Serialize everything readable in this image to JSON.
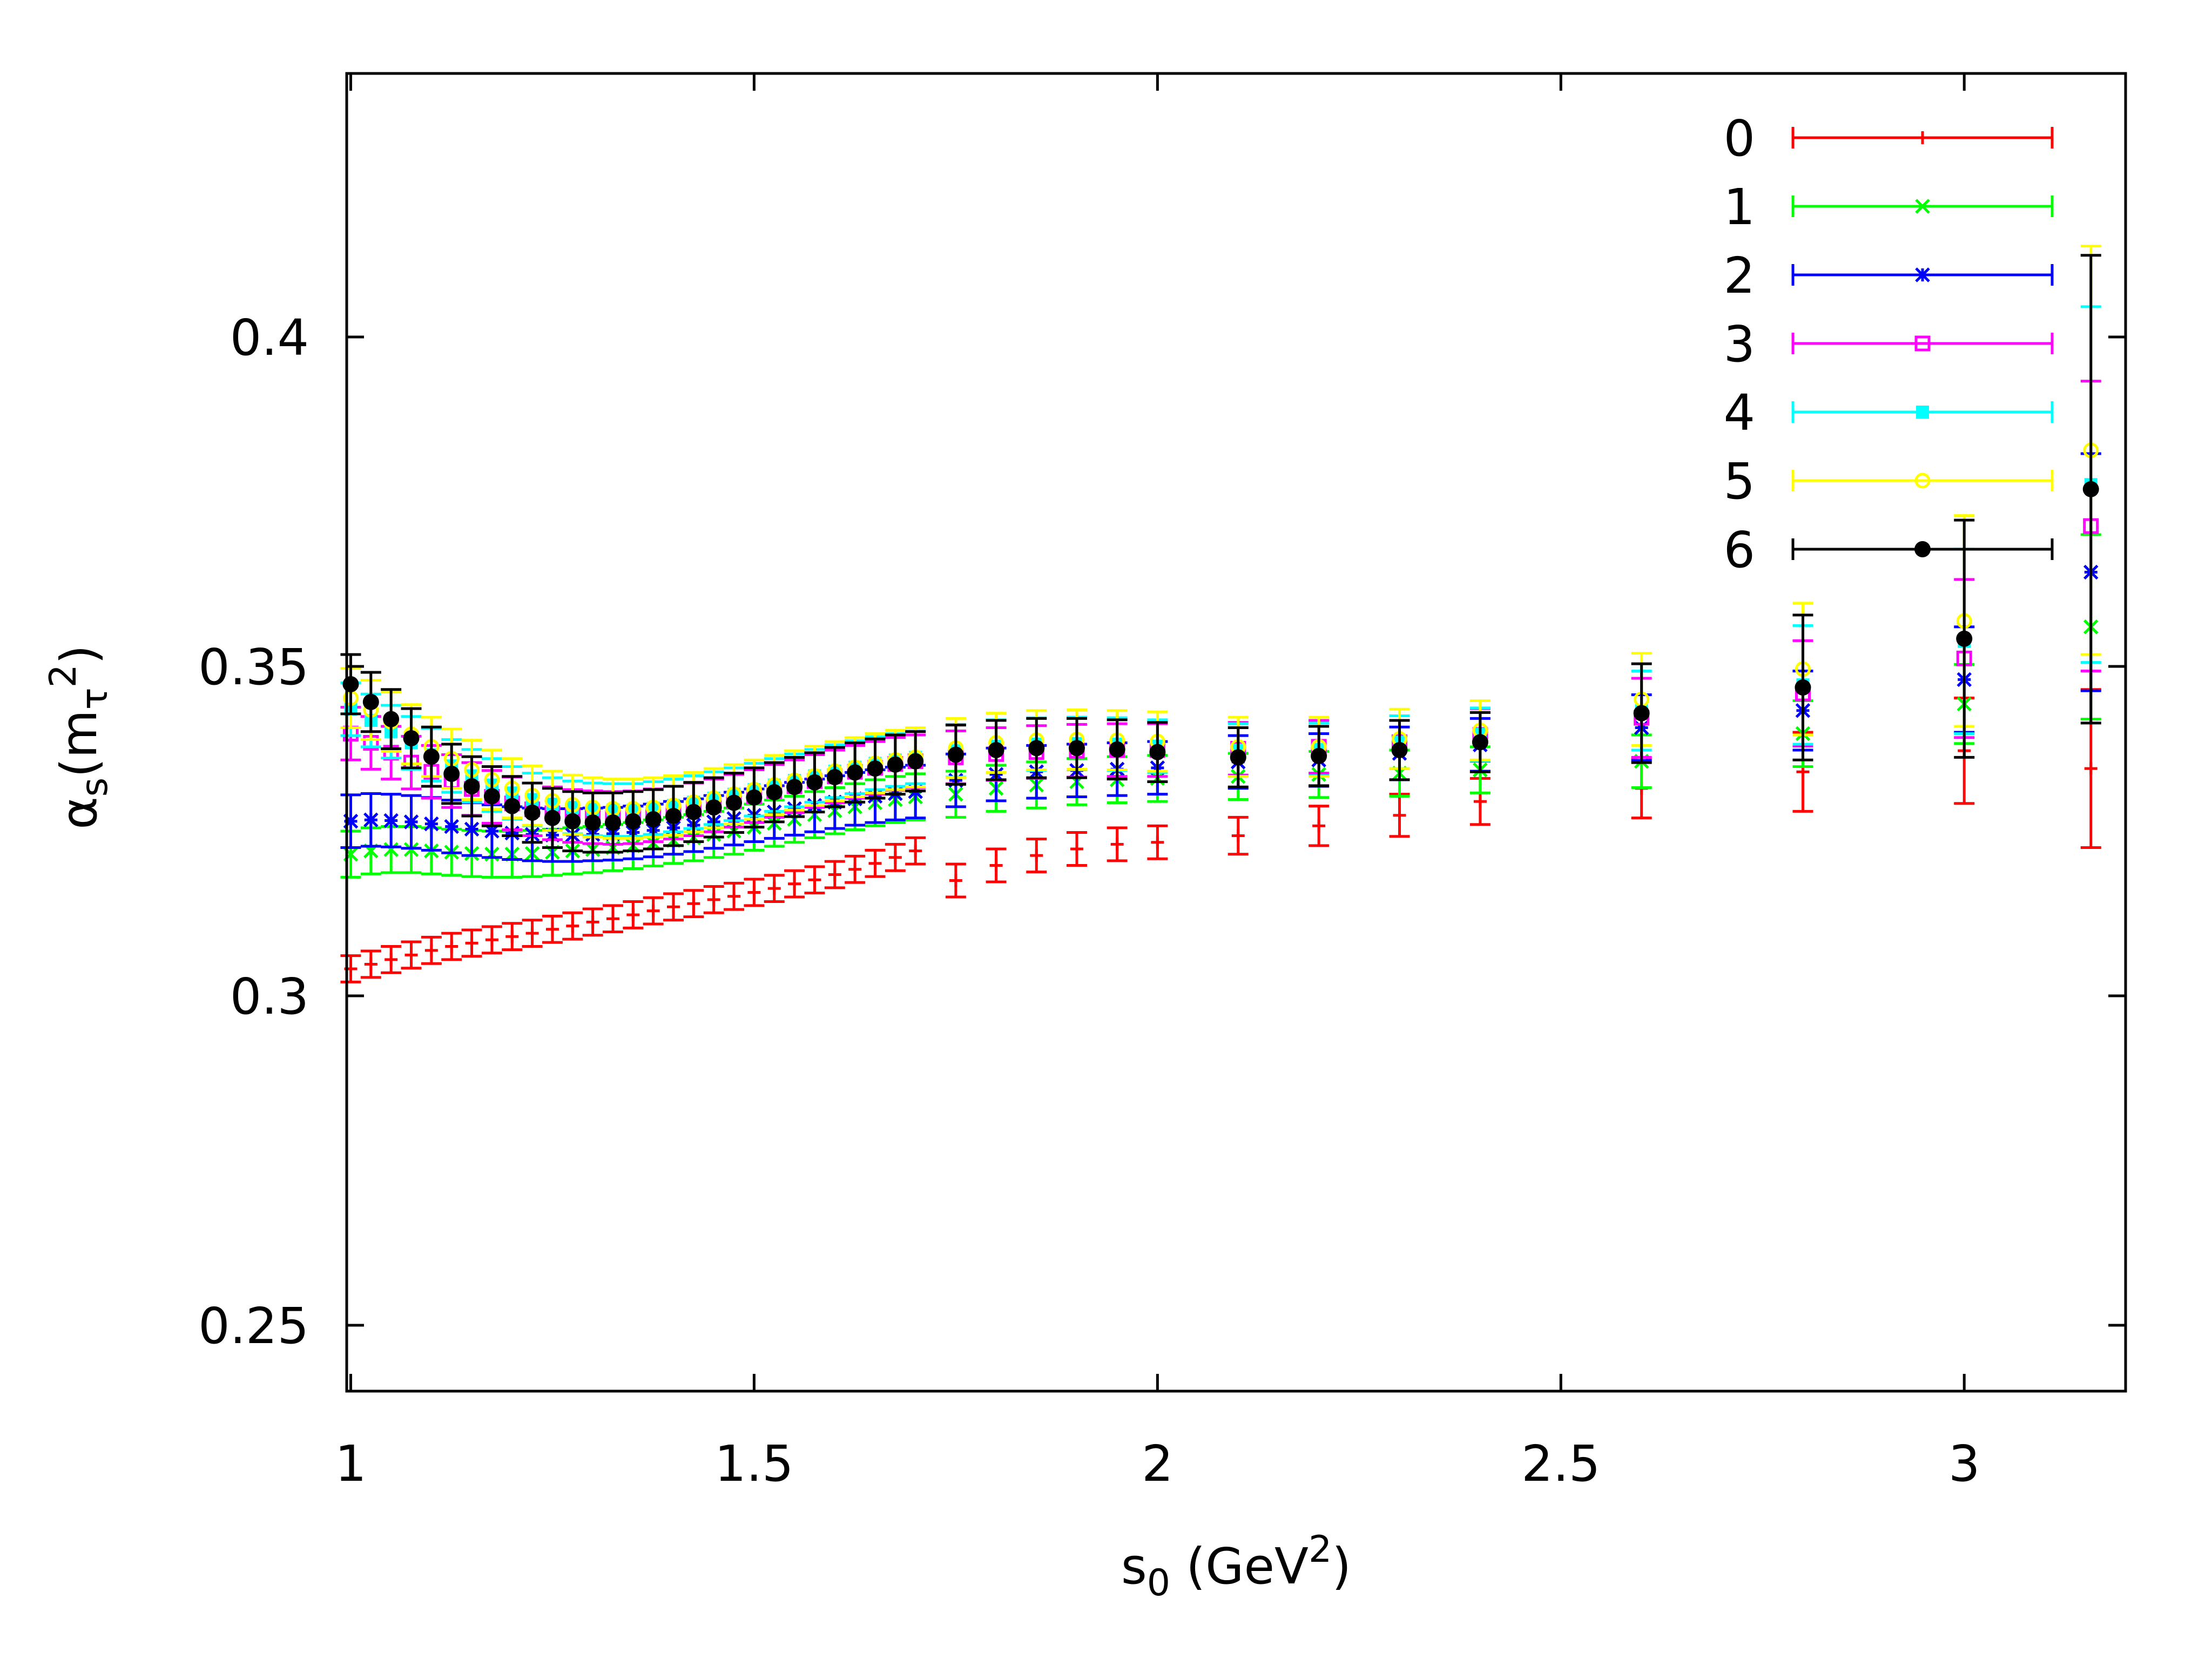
{
  "chart_data": {
    "type": "scatter",
    "title": "",
    "xlabel": {
      "main": "s",
      "sub": "0",
      "rest": " (GeV",
      "sup": "2",
      "end": ")"
    },
    "ylabel": {
      "main": "α",
      "sub": "s",
      "open": "(m",
      "sub2": "τ",
      "sup": "2",
      "close": ")"
    },
    "xlim": [
      0.995,
      3.2
    ],
    "ylim": [
      0.24,
      0.44
    ],
    "xticks": [
      {
        "value": 1,
        "label": "1"
      },
      {
        "value": 1.5,
        "label": "1.5"
      },
      {
        "value": 2,
        "label": "2"
      },
      {
        "value": 2.5,
        "label": "2.5"
      },
      {
        "value": 3,
        "label": "3"
      }
    ],
    "yticks": [
      {
        "value": 0.25,
        "label": "0.25"
      },
      {
        "value": 0.3,
        "label": "0.3"
      },
      {
        "value": 0.35,
        "label": "0.35"
      },
      {
        "value": 0.4,
        "label": "0.4"
      }
    ],
    "grid": false,
    "legend_position": "top-right",
    "x": [
      1.0,
      1.025,
      1.05,
      1.075,
      1.1,
      1.125,
      1.15,
      1.175,
      1.2,
      1.225,
      1.25,
      1.275,
      1.3,
      1.325,
      1.35,
      1.375,
      1.4,
      1.425,
      1.45,
      1.475,
      1.5,
      1.525,
      1.55,
      1.575,
      1.6,
      1.625,
      1.65,
      1.675,
      1.7,
      1.75,
      1.8,
      1.85,
      1.9,
      1.95,
      2.0,
      2.1,
      2.2,
      2.3,
      2.4,
      2.6,
      2.8,
      3.0,
      3.157
    ],
    "series": [
      {
        "name": "0",
        "color": "#ff0000",
        "marker": "plus",
        "values": [
          0.3041,
          0.3048,
          0.3055,
          0.3062,
          0.3069,
          0.3075,
          0.308,
          0.3085,
          0.309,
          0.3095,
          0.3101,
          0.3106,
          0.3112,
          0.3117,
          0.3123,
          0.3129,
          0.3135,
          0.314,
          0.3146,
          0.3151,
          0.3157,
          0.3163,
          0.317,
          0.3176,
          0.3184,
          0.3192,
          0.3201,
          0.321,
          0.322,
          0.3175,
          0.3198,
          0.3213,
          0.3223,
          0.323,
          0.3233,
          0.3243,
          0.3258,
          0.3274,
          0.3295,
          0.3315,
          0.334,
          0.3372,
          0.3345
        ],
        "errors": [
          0.002,
          0.002,
          0.002,
          0.002,
          0.002,
          0.002,
          0.002,
          0.002,
          0.002,
          0.002,
          0.002,
          0.002,
          0.002,
          0.002,
          0.002,
          0.002,
          0.002,
          0.002,
          0.002,
          0.002,
          0.002,
          0.002,
          0.002,
          0.002,
          0.002,
          0.002,
          0.002,
          0.002,
          0.002,
          0.0025,
          0.0025,
          0.0025,
          0.0025,
          0.0025,
          0.0025,
          0.0028,
          0.003,
          0.0032,
          0.0035,
          0.0045,
          0.006,
          0.008,
          0.012
        ]
      },
      {
        "name": "1",
        "color": "#00ff00",
        "marker": "cross",
        "values": [
          0.3215,
          0.322,
          0.3222,
          0.3222,
          0.322,
          0.3218,
          0.3216,
          0.3215,
          0.3215,
          0.3216,
          0.3218,
          0.322,
          0.3222,
          0.3225,
          0.3228,
          0.3232,
          0.3236,
          0.324,
          0.3245,
          0.325,
          0.3256,
          0.3262,
          0.3268,
          0.3275,
          0.3281,
          0.3287,
          0.3293,
          0.3298,
          0.3302,
          0.3306,
          0.3315,
          0.332,
          0.3325,
          0.3328,
          0.333,
          0.3333,
          0.3336,
          0.3338,
          0.3343,
          0.3356,
          0.3398,
          0.3443,
          0.356
        ],
        "errors": [
          0.0035,
          0.0035,
          0.0035,
          0.0035,
          0.0035,
          0.0035,
          0.0035,
          0.0035,
          0.0035,
          0.0035,
          0.0035,
          0.0035,
          0.0035,
          0.0035,
          0.0035,
          0.0035,
          0.0035,
          0.0035,
          0.0035,
          0.0035,
          0.0035,
          0.0035,
          0.0035,
          0.0035,
          0.0035,
          0.0035,
          0.0035,
          0.0035,
          0.0035,
          0.0035,
          0.0035,
          0.0035,
          0.0035,
          0.0035,
          0.0035,
          0.0035,
          0.0035,
          0.0035,
          0.0035,
          0.004,
          0.005,
          0.006,
          0.014
        ]
      },
      {
        "name": "2",
        "color": "#0000ff",
        "marker": "star",
        "values": [
          0.3265,
          0.3267,
          0.3266,
          0.3264,
          0.3261,
          0.3257,
          0.3253,
          0.325,
          0.3247,
          0.3245,
          0.3244,
          0.3244,
          0.3245,
          0.3246,
          0.3248,
          0.3251,
          0.3255,
          0.3259,
          0.3264,
          0.3269,
          0.3274,
          0.3279,
          0.3284,
          0.3289,
          0.3294,
          0.3299,
          0.3303,
          0.3307,
          0.331,
          0.3327,
          0.3336,
          0.334,
          0.3342,
          0.3344,
          0.3346,
          0.3355,
          0.3358,
          0.3368,
          0.3381,
          0.3407,
          0.3433,
          0.348,
          0.3643
        ],
        "errors": [
          0.004,
          0.004,
          0.004,
          0.004,
          0.004,
          0.004,
          0.004,
          0.004,
          0.004,
          0.004,
          0.004,
          0.004,
          0.004,
          0.004,
          0.004,
          0.004,
          0.004,
          0.004,
          0.004,
          0.004,
          0.004,
          0.004,
          0.004,
          0.004,
          0.004,
          0.004,
          0.004,
          0.004,
          0.004,
          0.004,
          0.004,
          0.004,
          0.004,
          0.004,
          0.004,
          0.004,
          0.004,
          0.004,
          0.004,
          0.005,
          0.006,
          0.008,
          0.018
        ]
      },
      {
        "name": "3",
        "color": "#ff00ff",
        "marker": "open-square",
        "values": [
          0.3398,
          0.3384,
          0.3369,
          0.3354,
          0.334,
          0.3326,
          0.3314,
          0.3302,
          0.3292,
          0.3283,
          0.3277,
          0.3273,
          0.3271,
          0.327,
          0.3271,
          0.3274,
          0.3278,
          0.3283,
          0.3289,
          0.3296,
          0.3303,
          0.3311,
          0.3318,
          0.3326,
          0.3333,
          0.334,
          0.3346,
          0.3352,
          0.3356,
          0.3362,
          0.3367,
          0.337,
          0.3372,
          0.3373,
          0.3373,
          0.3375,
          0.3378,
          0.3385,
          0.3396,
          0.3422,
          0.3459,
          0.3512,
          0.3713
        ],
        "errors": [
          0.004,
          0.004,
          0.004,
          0.004,
          0.004,
          0.004,
          0.004,
          0.004,
          0.004,
          0.004,
          0.004,
          0.004,
          0.004,
          0.004,
          0.004,
          0.004,
          0.004,
          0.004,
          0.004,
          0.004,
          0.004,
          0.004,
          0.004,
          0.004,
          0.004,
          0.004,
          0.004,
          0.004,
          0.004,
          0.004,
          0.004,
          0.004,
          0.004,
          0.004,
          0.004,
          0.004,
          0.004,
          0.004,
          0.004,
          0.006,
          0.008,
          0.012,
          0.022
        ]
      },
      {
        "name": "4",
        "color": "#00ffff",
        "marker": "filled-square",
        "values": [
          0.3435,
          0.3418,
          0.3401,
          0.3384,
          0.3366,
          0.3349,
          0.3334,
          0.332,
          0.3308,
          0.3298,
          0.3291,
          0.3286,
          0.3283,
          0.3282,
          0.3282,
          0.3285,
          0.3289,
          0.3294,
          0.33,
          0.3306,
          0.3313,
          0.332,
          0.3327,
          0.3334,
          0.3341,
          0.3347,
          0.3353,
          0.3358,
          0.3362,
          0.3372,
          0.3379,
          0.3382,
          0.3383,
          0.3382,
          0.3379,
          0.3373,
          0.3374,
          0.3385,
          0.3397,
          0.3433,
          0.3472,
          0.3538,
          0.3776
        ],
        "errors": [
          0.004,
          0.004,
          0.004,
          0.004,
          0.004,
          0.004,
          0.004,
          0.004,
          0.004,
          0.004,
          0.004,
          0.004,
          0.004,
          0.004,
          0.004,
          0.004,
          0.004,
          0.004,
          0.004,
          0.004,
          0.004,
          0.004,
          0.004,
          0.004,
          0.004,
          0.004,
          0.004,
          0.004,
          0.004,
          0.004,
          0.004,
          0.004,
          0.004,
          0.004,
          0.004,
          0.004,
          0.004,
          0.004,
          0.004,
          0.006,
          0.009,
          0.014,
          0.027
        ]
      },
      {
        "name": "5",
        "color": "#ffff00",
        "marker": "open-circle",
        "values": [
          0.3452,
          0.3434,
          0.3416,
          0.3397,
          0.3378,
          0.336,
          0.3343,
          0.3328,
          0.3315,
          0.3304,
          0.3296,
          0.329,
          0.3286,
          0.3284,
          0.3284,
          0.3286,
          0.3289,
          0.3294,
          0.33,
          0.3306,
          0.3313,
          0.332,
          0.3327,
          0.3334,
          0.3341,
          0.3347,
          0.3353,
          0.3358,
          0.3362,
          0.3376,
          0.3384,
          0.3388,
          0.3389,
          0.3388,
          0.3386,
          0.3378,
          0.3378,
          0.339,
          0.3403,
          0.345,
          0.3496,
          0.3569,
          0.3828
        ],
        "errors": [
          0.0045,
          0.0045,
          0.0045,
          0.0045,
          0.0045,
          0.0045,
          0.0045,
          0.0045,
          0.0045,
          0.0045,
          0.0045,
          0.0045,
          0.0045,
          0.0045,
          0.0045,
          0.0045,
          0.0045,
          0.0045,
          0.0045,
          0.0045,
          0.0045,
          0.0045,
          0.0045,
          0.0045,
          0.0045,
          0.0045,
          0.0045,
          0.0045,
          0.0045,
          0.0045,
          0.0045,
          0.0045,
          0.0045,
          0.0045,
          0.0045,
          0.0045,
          0.0045,
          0.0045,
          0.0045,
          0.007,
          0.01,
          0.016,
          0.031
        ]
      },
      {
        "name": "6",
        "color": "#000000",
        "marker": "filled-circle",
        "values": [
          0.3473,
          0.3446,
          0.342,
          0.3391,
          0.3363,
          0.3337,
          0.3318,
          0.3303,
          0.3288,
          0.3278,
          0.327,
          0.3265,
          0.3263,
          0.3263,
          0.3265,
          0.3268,
          0.3273,
          0.3279,
          0.3286,
          0.3293,
          0.3301,
          0.3309,
          0.3317,
          0.3324,
          0.3332,
          0.3339,
          0.3345,
          0.3351,
          0.3356,
          0.3366,
          0.3373,
          0.3376,
          0.3376,
          0.3374,
          0.337,
          0.3362,
          0.3364,
          0.3373,
          0.3385,
          0.3429,
          0.3468,
          0.3542,
          0.3769
        ],
        "errors": [
          0.0045,
          0.0045,
          0.0045,
          0.0045,
          0.0045,
          0.0045,
          0.0045,
          0.0045,
          0.0045,
          0.0045,
          0.0045,
          0.0045,
          0.0045,
          0.0045,
          0.0045,
          0.0045,
          0.0045,
          0.0045,
          0.0045,
          0.0045,
          0.0045,
          0.0045,
          0.0045,
          0.0045,
          0.0045,
          0.0045,
          0.0045,
          0.0045,
          0.0045,
          0.0045,
          0.0045,
          0.0045,
          0.0045,
          0.0045,
          0.0045,
          0.0045,
          0.0045,
          0.0045,
          0.0045,
          0.0075,
          0.011,
          0.018,
          0.0355
        ]
      }
    ]
  }
}
